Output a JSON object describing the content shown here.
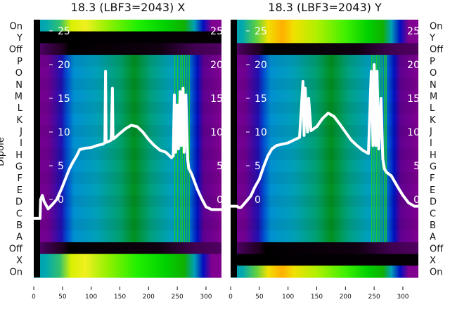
{
  "chart_data": {
    "type": "heatmap",
    "ylabel": "Dipole",
    "row_labels": [
      "On",
      "Y",
      "Off",
      "P",
      "O",
      "N",
      "M",
      "L",
      "K",
      "J",
      "I",
      "H",
      "G",
      "F",
      "E",
      "D",
      "C",
      "B",
      "A",
      "Off",
      "X",
      "On"
    ],
    "x_ticks": [
      0,
      50,
      100,
      150,
      200,
      250,
      300
    ],
    "xlim": [
      0,
      327
    ],
    "inner_y_ticks": [
      0,
      5,
      10,
      15,
      20,
      25
    ],
    "inner_ylim": [
      -5,
      26
    ],
    "gradients": {
      "bright": [
        [
          0,
          "#009aa8"
        ],
        [
          20,
          "#00a8b0"
        ],
        [
          45,
          "#30c070"
        ],
        [
          65,
          "#d8f000"
        ],
        [
          90,
          "#f0f020"
        ],
        [
          130,
          "#90f000"
        ],
        [
          180,
          "#20f000"
        ],
        [
          230,
          "#00d000"
        ],
        [
          262,
          "#10b000"
        ],
        [
          280,
          "#00a0b8"
        ],
        [
          295,
          "#0010c0"
        ],
        [
          310,
          "#800090"
        ],
        [
          327,
          "#800090"
        ]
      ],
      "bright_orange": [
        [
          0,
          "#009aa8"
        ],
        [
          20,
          "#00a8b0"
        ],
        [
          45,
          "#60d040"
        ],
        [
          65,
          "#f0e000"
        ],
        [
          90,
          "#ffb000"
        ],
        [
          110,
          "#f0e000"
        ],
        [
          150,
          "#b0f000"
        ],
        [
          200,
          "#40f000"
        ],
        [
          240,
          "#00d000"
        ],
        [
          265,
          "#10b000"
        ],
        [
          280,
          "#00a0b8"
        ],
        [
          295,
          "#0010c0"
        ],
        [
          310,
          "#800090"
        ],
        [
          327,
          "#800090"
        ]
      ],
      "main": [
        [
          0,
          "#780090"
        ],
        [
          25,
          "#700090"
        ],
        [
          48,
          "#2010b0"
        ],
        [
          58,
          "#0050d0"
        ],
        [
          70,
          "#0090d0"
        ],
        [
          110,
          "#00a0b8"
        ],
        [
          150,
          "#00a070"
        ],
        [
          175,
          "#009020"
        ],
        [
          205,
          "#00a080"
        ],
        [
          240,
          "#00a0c0"
        ],
        [
          272,
          "#0070d0"
        ],
        [
          285,
          "#0010c0"
        ],
        [
          296,
          "#600090"
        ],
        [
          327,
          "#800090"
        ]
      ],
      "dark": [
        [
          0,
          "#600080"
        ],
        [
          20,
          "#400050"
        ],
        [
          50,
          "#200020"
        ],
        [
          62,
          "#000000"
        ],
        [
          220,
          "#100010"
        ],
        [
          280,
          "#400050"
        ],
        [
          327,
          "#500060"
        ]
      ],
      "black": [
        [
          0,
          "#000000"
        ],
        [
          327,
          "#050005"
        ]
      ]
    },
    "panels": [
      {
        "title": "18.3 (LBF3=2043) X",
        "row_types": [
          "bright",
          "black",
          "dark",
          "main",
          "main",
          "main",
          "main",
          "main",
          "main",
          "main",
          "main",
          "main",
          "main",
          "main",
          "main",
          "main",
          "main",
          "main",
          "main",
          "dark",
          "bright",
          "bright"
        ],
        "green_stripes": [
          245,
          250,
          255,
          258,
          262,
          266,
          270
        ],
        "black_left_column": true,
        "line": {
          "x": [
            0,
            11,
            12,
            15,
            18,
            25,
            32,
            40,
            48,
            55,
            62,
            68,
            75,
            80,
            90,
            100,
            110,
            120,
            124,
            125,
            126,
            128,
            135,
            137,
            138,
            139,
            142,
            150,
            160,
            170,
            180,
            190,
            200,
            210,
            220,
            230,
            240,
            243,
            245,
            247,
            250,
            252,
            255,
            257,
            260,
            262,
            265,
            268,
            270,
            275,
            285,
            292,
            300,
            310,
            327
          ],
          "y": [
            -2.8,
            -2.8,
            0,
            0.6,
            -0.3,
            -1.4,
            -0.8,
            0,
            1.5,
            3,
            4.5,
            5.5,
            6.5,
            7.4,
            7.6,
            7.7,
            8,
            8.2,
            8.4,
            19,
            8.5,
            8.5,
            8.8,
            16.5,
            9,
            9,
            9.2,
            9.8,
            10.5,
            11,
            10.8,
            10,
            8.9,
            8,
            7.3,
            7,
            6.2,
            6.5,
            15.5,
            7,
            14,
            7.5,
            16,
            8,
            16.5,
            7,
            15.5,
            6,
            4.6,
            3.8,
            1.5,
            0.2,
            -1.1,
            -1.5,
            -1.5
          ]
        }
      },
      {
        "title": "18.3 (LBF3=2043) Y",
        "row_types": [
          "bright_orange",
          "bright_orange",
          "dark",
          "main",
          "main",
          "main",
          "main",
          "main",
          "main",
          "main",
          "main",
          "main",
          "main",
          "main",
          "main",
          "main",
          "main",
          "main",
          "main",
          "dark",
          "black",
          "bright_orange"
        ],
        "green_stripes": [
          245,
          249,
          253,
          256,
          259,
          263,
          267,
          270
        ],
        "black_left_column": true,
        "line": {
          "x": [
            0,
            11,
            14,
            18,
            22,
            28,
            35,
            42,
            50,
            58,
            65,
            72,
            80,
            90,
            100,
            110,
            120,
            126,
            128,
            130,
            134,
            136,
            140,
            150,
            160,
            170,
            180,
            190,
            200,
            210,
            220,
            230,
            240,
            245,
            248,
            250,
            253,
            255,
            258,
            262,
            265,
            268,
            272,
            280,
            290,
            300,
            310,
            320,
            327
          ],
          "y": [
            -1,
            -1,
            -1.2,
            -1.2,
            -0.8,
            -0.2,
            0.5,
            1.8,
            3,
            5,
            6.5,
            7.5,
            8,
            8.2,
            8.4,
            8.8,
            9.2,
            17.5,
            9.5,
            16.5,
            10,
            15,
            10.2,
            10.8,
            12,
            12.8,
            12.3,
            11.2,
            10,
            8.8,
            8,
            7.3,
            6.8,
            19,
            8,
            20,
            8,
            19,
            7.5,
            15,
            6,
            4.5,
            4,
            3.5,
            2,
            0.6,
            -0.5,
            -1,
            -1
          ]
        }
      }
    ]
  }
}
